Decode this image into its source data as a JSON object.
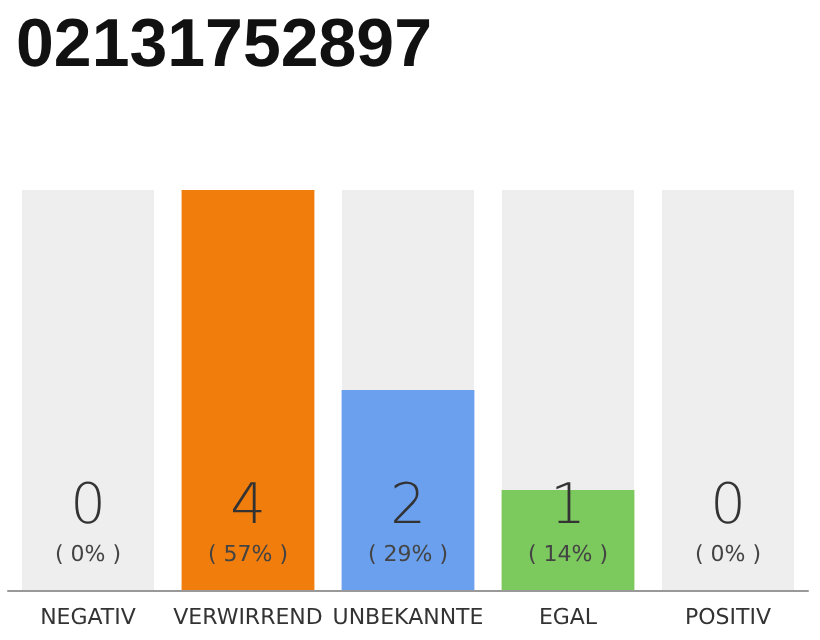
{
  "chart_data": {
    "type": "bar",
    "title": "02131752897",
    "categories": [
      "NEGATIV",
      "VERWIRREND",
      "UNBEKANNTE",
      "EGAL",
      "POSITIV"
    ],
    "values": [
      0,
      4,
      2,
      1,
      0
    ],
    "colors": [
      "#cccccc",
      "#f07d0c",
      "#6aa0ee",
      "#7cc95e",
      "#cccccc"
    ],
    "value_labels": [
      "0\n( 0% )",
      "4\n( 57% )",
      "2\n( 29% )",
      "1\n( 14% )",
      "0\n( 0% )"
    ],
    "grid": false
  }
}
